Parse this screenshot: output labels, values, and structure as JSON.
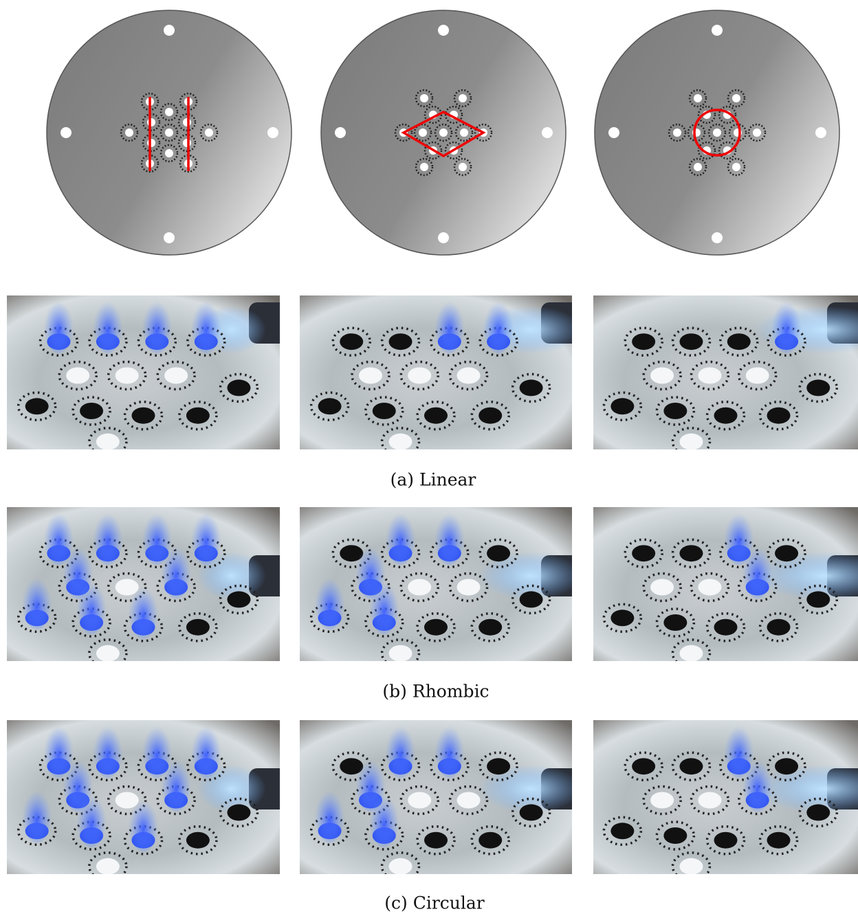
{
  "captions": [
    "(a) Linear",
    "(b) Rhombic",
    "(c) Circular"
  ]
}
